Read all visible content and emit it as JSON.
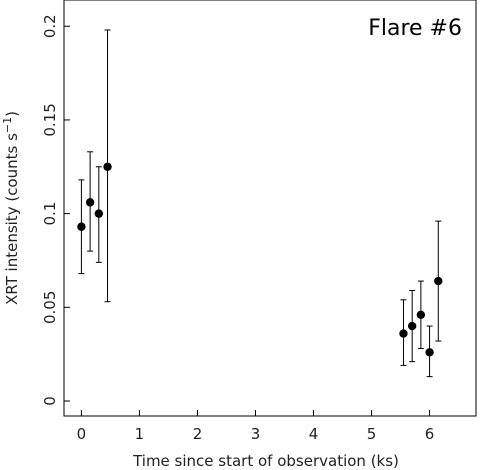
{
  "chart_data": {
    "type": "scatter",
    "annotation": "Flare #6",
    "xlabel": "Time since start of observation (ks)",
    "ylabel_parts": {
      "main": "XRT intensity (counts s",
      "exp": "−1",
      "close": ")"
    },
    "xlim": [
      -0.3,
      6.8
    ],
    "ylim": [
      -0.008,
      0.214
    ],
    "xticks": [
      0,
      1,
      2,
      3,
      4,
      5,
      6
    ],
    "yticks": [
      0,
      0.05,
      0.1,
      0.15,
      0.2
    ],
    "ytick_labels": [
      "0",
      "0.05",
      "0.1",
      "0.15",
      "0.2"
    ],
    "series": [
      {
        "points": [
          {
            "x": 0.0,
            "y": 0.093,
            "ylo": 0.068,
            "yhi": 0.118
          },
          {
            "x": 0.15,
            "y": 0.106,
            "ylo": 0.08,
            "yhi": 0.133
          },
          {
            "x": 0.3,
            "y": 0.1,
            "ylo": 0.074,
            "yhi": 0.125
          },
          {
            "x": 0.45,
            "y": 0.125,
            "ylo": 0.053,
            "yhi": 0.198
          },
          {
            "x": 5.55,
            "y": 0.036,
            "ylo": 0.019,
            "yhi": 0.054
          },
          {
            "x": 5.7,
            "y": 0.04,
            "ylo": 0.021,
            "yhi": 0.059
          },
          {
            "x": 5.85,
            "y": 0.046,
            "ylo": 0.028,
            "yhi": 0.064
          },
          {
            "x": 6.0,
            "y": 0.026,
            "ylo": 0.013,
            "yhi": 0.04
          },
          {
            "x": 6.15,
            "y": 0.064,
            "ylo": 0.032,
            "yhi": 0.096
          }
        ]
      }
    ],
    "colors": {
      "marker": "#000000",
      "axis": "#000000"
    }
  }
}
